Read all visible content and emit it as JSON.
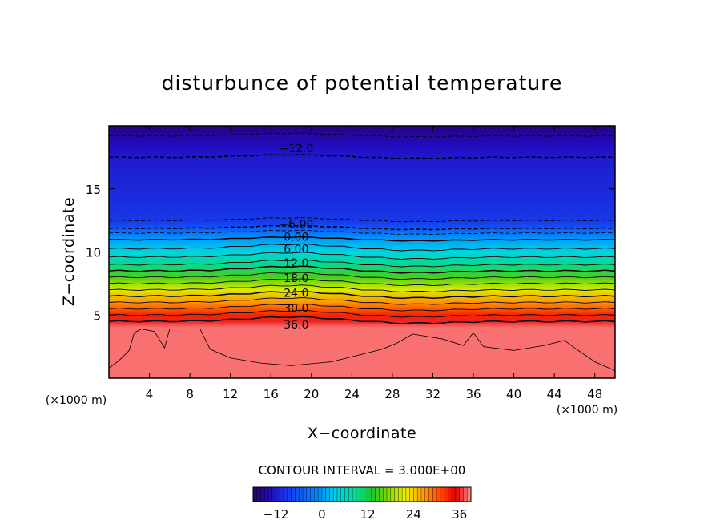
{
  "chart_data": {
    "type": "heatmap",
    "title": "disturbunce of potential temperature",
    "xlabel": "X−coordinate",
    "ylabel": "Z−coordinate",
    "x_unit_left": "(×1000 m)",
    "x_unit_right": "(×1000 m)",
    "xlim": [
      0,
      50
    ],
    "ylim": [
      0,
      20
    ],
    "xticks": [
      4,
      8,
      12,
      16,
      20,
      24,
      28,
      32,
      36,
      40,
      44,
      48
    ],
    "yticks": [
      5,
      10,
      15
    ],
    "contour_interval_text": "CONTOUR INTERVAL = 3.000E+00",
    "contour_interval": 3.0,
    "contour_levels_labeled": [
      {
        "label": "−12.0",
        "value": -12,
        "z": 18
      },
      {
        "label": "−6.00",
        "value": -6,
        "z": 12.0
      },
      {
        "label": "0.00",
        "value": 0,
        "z": 11.0
      },
      {
        "label": "6.00",
        "value": 6,
        "z": 9.9
      },
      {
        "label": "12.0",
        "value": 12,
        "z": 8.8
      },
      {
        "label": "18.0",
        "value": 18,
        "z": 7.6
      },
      {
        "label": "24.0",
        "value": 24,
        "z": 6.4
      },
      {
        "label": "30.0",
        "value": 30,
        "z": 5.2
      },
      {
        "label": "36.0",
        "value": 36,
        "z": 3.9
      }
    ],
    "profile": {
      "z": [
        0,
        1,
        2,
        3,
        4,
        4.5,
        5,
        6,
        7,
        8,
        9,
        10,
        10.8,
        11.5,
        12,
        12.5,
        14,
        16,
        17.5,
        18.5,
        19.2,
        20
      ],
      "theta": [
        38,
        38,
        38,
        38,
        38,
        36,
        33,
        27,
        21,
        15,
        9,
        4,
        1,
        -3,
        -7,
        -9,
        -10,
        -11,
        -12,
        -13.5,
        -15,
        -17
      ]
    },
    "colorbar": {
      "vmin": -18,
      "vmax": 39,
      "tick_labels": [
        "−12",
        "0",
        "12",
        "24",
        "36"
      ],
      "tick_values": [
        -12,
        0,
        12,
        24,
        36
      ]
    }
  }
}
